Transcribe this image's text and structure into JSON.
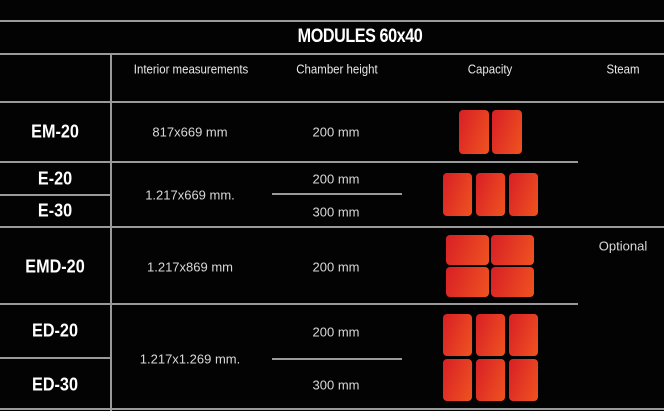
{
  "title": "MODULES 60x40",
  "headers": {
    "interior": "Interior measurements",
    "chamber": "Chamber height",
    "capacity": "Capacity",
    "steam": "Steam"
  },
  "rows": [
    {
      "model": "EM-20",
      "interior": "817x669 mm",
      "chamber": "200 mm",
      "capacity_trays": 2
    },
    {
      "model": "E-20",
      "interior": "1.217x669 mm.",
      "chamber": "200 mm",
      "capacity_trays": 3
    },
    {
      "model": "E-30",
      "chamber": "300 mm"
    },
    {
      "model": "EMD-20",
      "interior": "1.217x869 mm",
      "chamber": "200 mm",
      "capacity_trays": 4
    },
    {
      "model": "ED-20",
      "interior": "1.217x1.269 mm.",
      "chamber": "200 mm",
      "capacity_trays": 6
    },
    {
      "model": "ED-30",
      "chamber": "300 mm"
    }
  ],
  "steam": "Optional",
  "colors": {
    "tile": "#e23a22",
    "background": "#030303",
    "rule": "#9a9a9a"
  }
}
